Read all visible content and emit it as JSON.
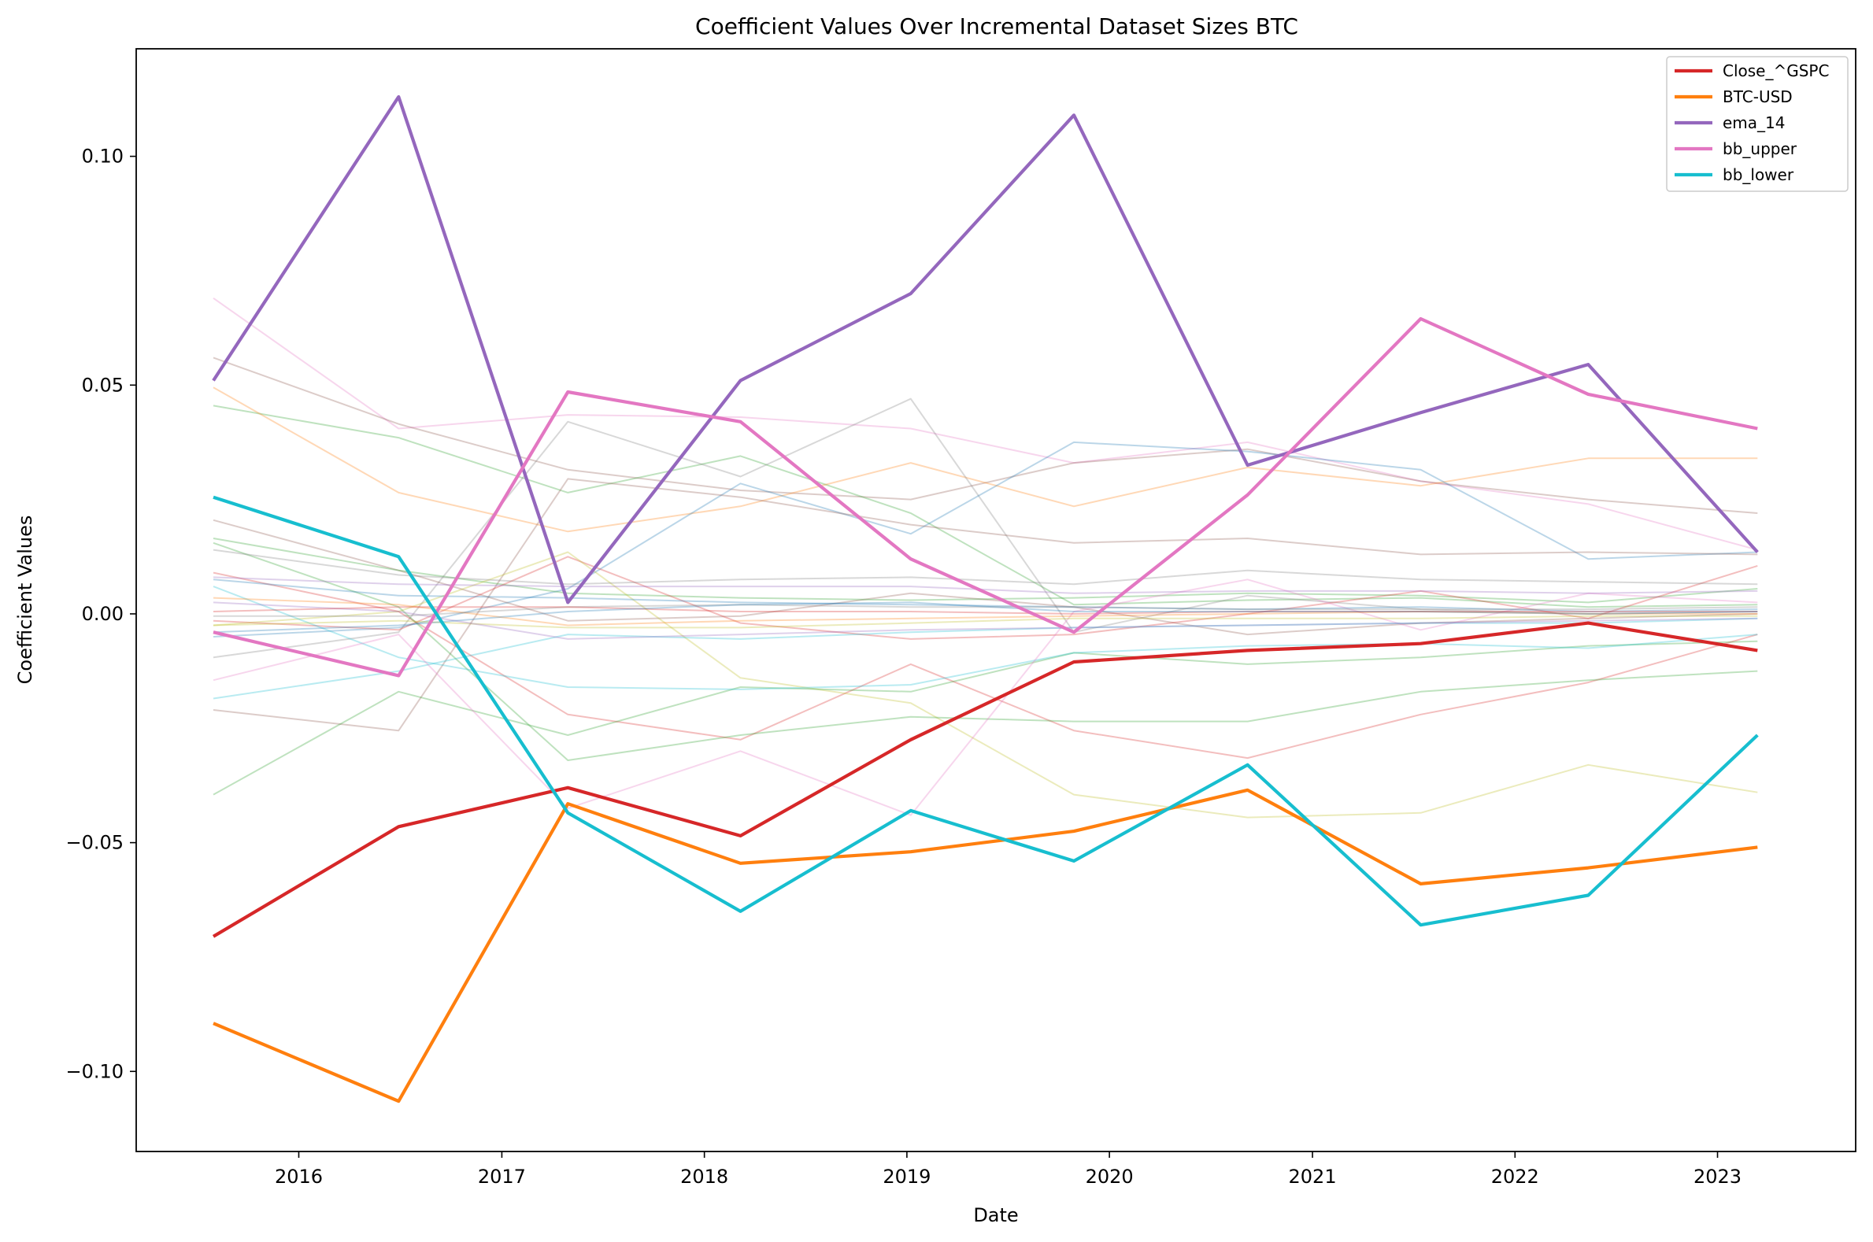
{
  "chart_data": {
    "type": "line",
    "title": "Coefficient Values Over Incremental Dataset Sizes BTC",
    "xlabel": "Date",
    "ylabel": "Coefficient Values",
    "xlim": [
      "2015-03-14",
      "2023-09-07"
    ],
    "ylim": [
      -0.1175,
      0.1235
    ],
    "x_ticks": [
      "2016",
      "2017",
      "2018",
      "2019",
      "2020",
      "2021",
      "2022",
      "2023"
    ],
    "y_ticks": [
      "0.10",
      "0.05",
      "0.00",
      "−0.05",
      "−0.10"
    ],
    "y_tick_values": [
      0.1,
      0.05,
      0.0,
      -0.05,
      -0.1
    ],
    "grid": false,
    "legend_position": "top-right",
    "x": [
      "2015-07-31",
      "2016-06-29",
      "2017-04-30",
      "2018-03-07",
      "2019-01-08",
      "2019-10-29",
      "2020-09-06",
      "2021-07-15",
      "2022-05-13",
      "2023-03-14"
    ],
    "series": [
      {
        "name": "Close_^GSPC",
        "color": "#d62728",
        "highlight": true,
        "values": [
          -0.0705,
          -0.0465,
          -0.038,
          -0.0485,
          -0.0275,
          -0.0105,
          -0.008,
          -0.0065,
          -0.002,
          -0.008
        ]
      },
      {
        "name": "BTC-USD",
        "color": "#ff7f0e",
        "highlight": true,
        "values": [
          -0.0895,
          -0.1065,
          -0.0415,
          -0.0545,
          -0.052,
          -0.0475,
          -0.0385,
          -0.059,
          -0.0555,
          -0.051
        ]
      },
      {
        "name": "ema_14",
        "color": "#9467bd",
        "highlight": true,
        "values": [
          0.051,
          0.113,
          0.0025,
          0.051,
          0.07,
          0.109,
          0.0325,
          0.044,
          0.0545,
          0.0135
        ]
      },
      {
        "name": "bb_upper",
        "color": "#e377c2",
        "highlight": true,
        "values": [
          -0.004,
          -0.0135,
          0.0485,
          0.042,
          0.012,
          -0.004,
          0.026,
          0.0645,
          0.048,
          0.0405
        ]
      },
      {
        "name": "bb_lower",
        "color": "#17becf",
        "highlight": true,
        "values": [
          0.0255,
          0.0125,
          -0.0435,
          -0.065,
          -0.043,
          -0.054,
          -0.033,
          -0.068,
          -0.0615,
          -0.0265
        ]
      },
      {
        "color": "#e377c2",
        "values": [
          0.069,
          0.0405,
          0.0435,
          0.043,
          0.0405,
          0.033,
          0.0375,
          0.029,
          0.024,
          0.014
        ]
      },
      {
        "color": "#8c564b",
        "values": [
          0.056,
          0.0415,
          0.0315,
          0.027,
          0.025,
          0.033,
          0.036,
          0.029,
          0.025,
          0.022
        ]
      },
      {
        "color": "#2ca02c",
        "values": [
          0.0455,
          0.0385,
          0.0265,
          0.0345,
          0.022,
          0.002,
          0.003,
          0.0035,
          0.0015,
          0.002
        ]
      },
      {
        "color": "#ff7f0e",
        "values": [
          0.0495,
          0.0265,
          0.018,
          0.0235,
          0.033,
          0.0235,
          0.032,
          0.028,
          0.034,
          0.034
        ]
      },
      {
        "color": "#7f7f7f",
        "values": [
          -0.0095,
          -0.004,
          0.042,
          0.03,
          0.047,
          -0.004,
          0.004,
          0.001,
          0.0,
          0.0005
        ]
      },
      {
        "color": "#1f77b4",
        "values": [
          -0.005,
          -0.003,
          0.0055,
          0.0285,
          0.0175,
          0.0375,
          0.0355,
          0.0315,
          0.012,
          0.0135
        ]
      },
      {
        "color": "#8c564b",
        "values": [
          0.0205,
          0.0095,
          -0.0015,
          -0.0005,
          0.0045,
          0.0015,
          -0.0045,
          -0.002,
          -0.001,
          0.0
        ]
      },
      {
        "color": "#8c564b",
        "values": [
          -0.021,
          -0.0255,
          0.0295,
          0.0255,
          0.0195,
          0.0155,
          0.0165,
          0.013,
          0.0135,
          0.013
        ]
      },
      {
        "color": "#2ca02c",
        "values": [
          0.0165,
          0.0095,
          0.0045,
          0.0035,
          0.003,
          0.0035,
          0.0045,
          0.004,
          0.0025,
          0.0055
        ]
      },
      {
        "color": "#d62728",
        "values": [
          0.009,
          0.0005,
          -0.022,
          -0.0275,
          -0.011,
          -0.0255,
          -0.0315,
          -0.022,
          -0.015,
          -0.0045
        ]
      },
      {
        "color": "#d62728",
        "values": [
          -0.0015,
          -0.0035,
          0.0125,
          -0.002,
          -0.0055,
          -0.0045,
          0.0,
          0.005,
          -0.001,
          0.0105
        ]
      },
      {
        "color": "#bcbd22",
        "values": [
          -0.0025,
          0.0005,
          0.0135,
          -0.014,
          -0.0195,
          -0.0395,
          -0.0445,
          -0.0435,
          -0.033,
          -0.039
        ]
      },
      {
        "color": "#2ca02c",
        "values": [
          0.0155,
          0.0015,
          -0.032,
          -0.0265,
          -0.0225,
          -0.0235,
          -0.0235,
          -0.017,
          -0.0145,
          -0.0125
        ]
      },
      {
        "color": "#2ca02c",
        "values": [
          -0.0395,
          -0.017,
          -0.0265,
          -0.016,
          -0.017,
          -0.0085,
          -0.011,
          -0.0095,
          -0.007,
          -0.006
        ]
      },
      {
        "color": "#17becf",
        "values": [
          0.006,
          -0.0095,
          -0.016,
          -0.0165,
          -0.0155,
          -0.0085,
          -0.007,
          -0.0065,
          -0.0075,
          -0.0045
        ]
      },
      {
        "color": "#e377c2",
        "values": [
          -0.0145,
          -0.0045,
          -0.0425,
          -0.03,
          -0.044,
          0.0005,
          0.0075,
          -0.0035,
          0.0045,
          0.0025
        ]
      },
      {
        "color": "#9467bd",
        "values": [
          0.008,
          0.0065,
          0.006,
          0.006,
          0.006,
          0.0045,
          0.005,
          0.005,
          0.0045,
          0.005
        ]
      },
      {
        "color": "#7f7f7f",
        "values": [
          0.014,
          0.0085,
          0.0065,
          0.0075,
          0.008,
          0.0065,
          0.0095,
          0.0075,
          0.007,
          0.0065
        ]
      },
      {
        "color": "#1f77b4",
        "values": [
          0.0075,
          0.004,
          0.0035,
          0.0025,
          0.002,
          0.0015,
          0.001,
          0.0015,
          0.0005,
          0.001
        ]
      },
      {
        "color": "#ff7f0e",
        "values": [
          0.0035,
          0.002,
          -0.0025,
          -0.0015,
          -0.001,
          -0.0005,
          0.0,
          0.0005,
          0.0,
          0.0
        ]
      },
      {
        "color": "#bcbd22",
        "values": [
          -0.0025,
          -0.0015,
          -0.003,
          -0.003,
          -0.002,
          -0.001,
          -0.001,
          -0.001,
          -0.0005,
          -0.0005
        ]
      },
      {
        "color": "#17becf",
        "values": [
          -0.0185,
          -0.0125,
          -0.0045,
          -0.0055,
          -0.004,
          -0.003,
          -0.0025,
          -0.002,
          -0.002,
          -0.001
        ]
      },
      {
        "color": "#9467bd",
        "values": [
          0.0025,
          0.0005,
          -0.0055,
          -0.0045,
          -0.0035,
          -0.003,
          -0.0025,
          -0.002,
          -0.0015,
          -0.001
        ]
      },
      {
        "color": "#7f7f7f",
        "values": [
          -0.0005,
          -0.0005,
          0.0015,
          0.002,
          0.0015,
          0.0015,
          0.001,
          0.001,
          0.001,
          0.0015
        ]
      },
      {
        "color": "#d62728",
        "values": [
          0.0005,
          0.0015,
          0.0015,
          0.0005,
          0.0005,
          0.0,
          0.0005,
          0.0005,
          0.0005,
          0.0005
        ]
      },
      {
        "color": "#1f77b4",
        "values": [
          -0.004,
          -0.0025,
          0.0005,
          0.002,
          0.0025,
          0.0005,
          0.0005,
          0.0005,
          0.0,
          0.0005
        ]
      }
    ]
  }
}
